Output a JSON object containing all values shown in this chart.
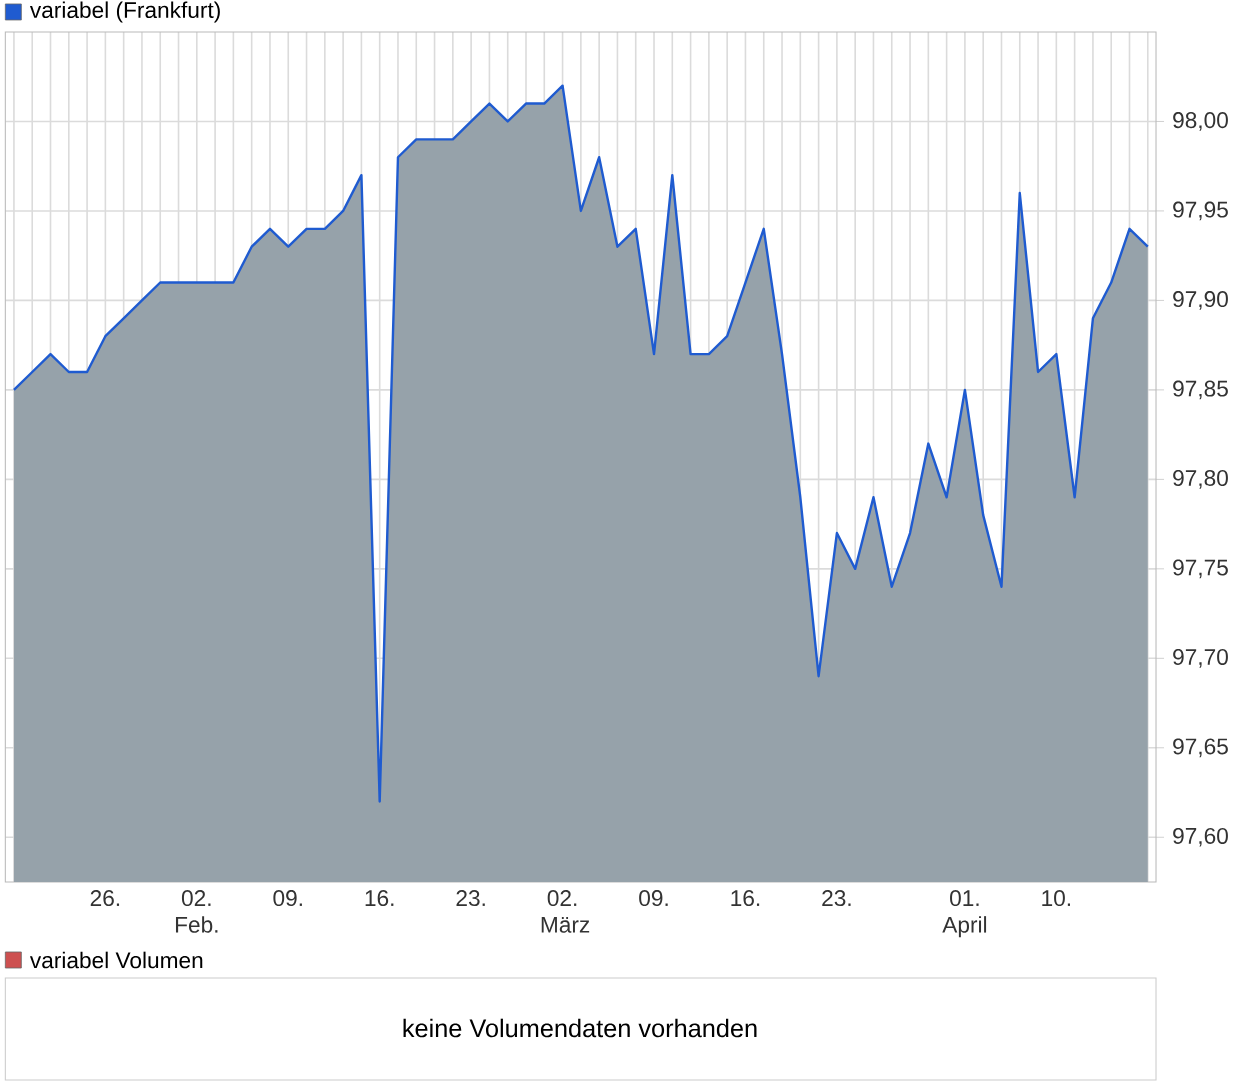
{
  "chart_data": [
    {
      "type": "area",
      "categories": [
        null,
        null,
        null,
        null,
        null,
        "26.",
        null,
        null,
        null,
        null,
        "02. Feb.",
        null,
        null,
        null,
        null,
        "09.",
        null,
        null,
        null,
        null,
        "16.",
        null,
        null,
        null,
        null,
        "23.",
        null,
        null,
        null,
        null,
        "02. März",
        null,
        null,
        null,
        null,
        "09.",
        null,
        null,
        null,
        null,
        "16.",
        null,
        null,
        null,
        null,
        "23.",
        null,
        null,
        null,
        null,
        null,
        null,
        "01. April",
        null,
        null,
        null,
        null,
        "10.",
        null,
        null,
        null,
        null,
        null
      ],
      "series": [
        {
          "name": "variabel (Frankfurt)",
          "color": "#1f5bd0",
          "values": [
            97.85,
            97.86,
            97.87,
            97.86,
            97.86,
            97.88,
            97.89,
            97.9,
            97.91,
            97.91,
            97.91,
            97.91,
            97.91,
            97.93,
            97.94,
            97.93,
            97.94,
            97.94,
            97.95,
            97.97,
            97.62,
            97.98,
            97.99,
            97.99,
            97.99,
            98.0,
            98.01,
            98.0,
            98.01,
            98.01,
            98.02,
            97.95,
            97.98,
            97.93,
            97.94,
            97.87,
            97.97,
            97.87,
            97.87,
            97.88,
            97.91,
            97.94,
            97.87,
            97.79,
            97.69,
            97.77,
            97.75,
            97.79,
            97.74,
            97.77,
            97.82,
            97.79,
            97.85,
            97.78,
            97.74,
            97.96,
            97.86,
            97.87,
            97.79,
            97.89,
            97.91,
            97.94,
            97.93
          ]
        }
      ],
      "ylim": [
        97.575,
        98.05
      ],
      "yticks": [
        {
          "value": 97.6,
          "label": "97,60"
        },
        {
          "value": 97.65,
          "label": "97,65"
        },
        {
          "value": 97.7,
          "label": "97,70"
        },
        {
          "value": 97.75,
          "label": "97,75"
        },
        {
          "value": 97.8,
          "label": "97,80"
        },
        {
          "value": 97.85,
          "label": "97,85"
        },
        {
          "value": 97.9,
          "label": "97,90"
        },
        {
          "value": 97.95,
          "label": "97,95"
        },
        {
          "value": 98.0,
          "label": "98,00"
        }
      ],
      "grid": true,
      "legend": "top left"
    },
    {
      "type": "other",
      "title": "variabel Volumen",
      "annotations": [
        "keine Volumendaten vorhanden"
      ]
    }
  ]
}
